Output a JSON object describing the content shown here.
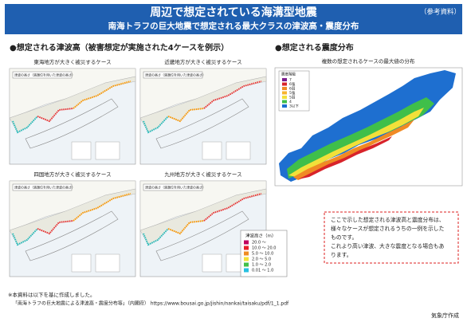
{
  "header": {
    "title": "周辺で想定されている海溝型地震",
    "subtitle": "南海トラフの巨大地震で想定される最大クラスの津波高・震度分布",
    "tag": "（参考資料）"
  },
  "tsunami": {
    "heading": "●想定される津波高（被害想定が実施された4ケースを例示）",
    "cases": [
      {
        "caption": "東海地方が大きく被災するケース",
        "note": "津波の高さ（満潮位を用いた津波の高さ）"
      },
      {
        "caption": "近畿地方が大きく被災するケース",
        "note": "津波の高さ（満潮位を用いた津波の高さ）"
      },
      {
        "caption": "四国地方が大きく被災するケース",
        "note": "津波の高さ（満潮位を用いた津波の高さ）"
      },
      {
        "caption": "九州地方が大きく被災するケース",
        "note": "津波の高さ（満潮位を用いた津波の高さ）"
      }
    ],
    "legend": {
      "title": "津波高さ（m）",
      "items": [
        "20.0 ～",
        "10.0 ～ 20.0",
        "5.0 ～ 10.0",
        "2.0 ～ 5.0",
        "1.0 ～ 2.0",
        "0.01 ～ 1.0"
      ]
    }
  },
  "intensity": {
    "heading": "●想定される震度分布",
    "caption": "複数の想定されるケースの最大値の分布",
    "legend": {
      "title": "震度階級",
      "items": [
        "7",
        "6強",
        "6弱",
        "5強",
        "5弱",
        "4",
        "3以下"
      ]
    }
  },
  "notice": {
    "lines": [
      "ここで示した想定される津波高と震度分布は、",
      "様々なケースが想定されるうちの一例を示した",
      "ものです。",
      "これより高い津波、大きな震度となる場合もあ",
      "ります。"
    ]
  },
  "footer": {
    "source_intro": "※本資料は以下を基に作成しました。",
    "source": "「南海トラフの巨大地震による津波高・震度分布等」（内閣府） https://www.bousai.go.jp/jishin/nankai/taisaku/pdf/1_1.pdf",
    "credit": "気象庁作成"
  }
}
